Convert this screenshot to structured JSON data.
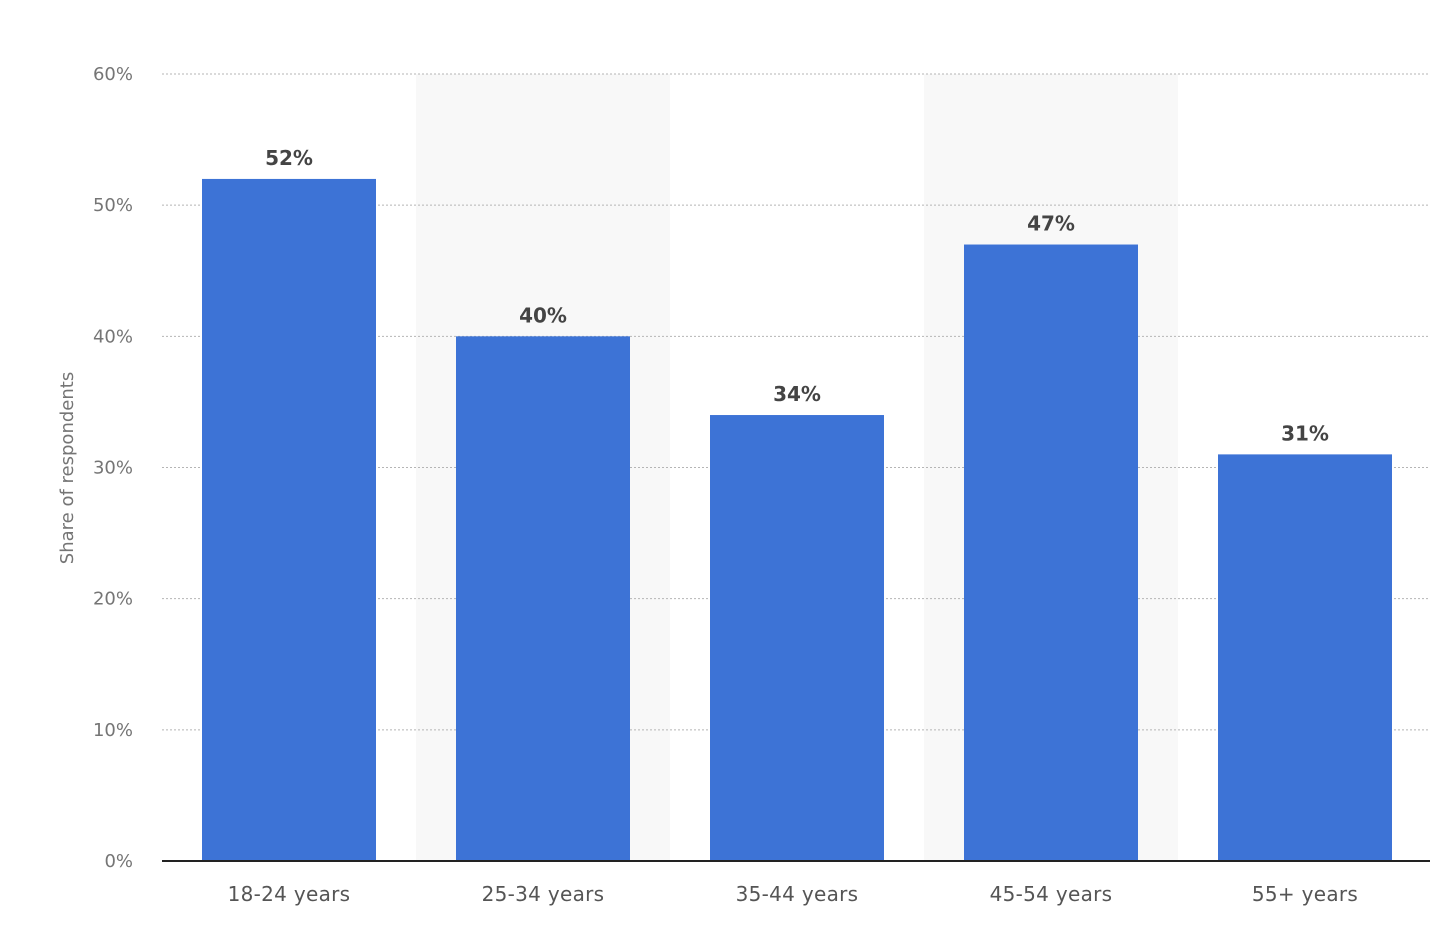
{
  "chart_data": {
    "type": "bar",
    "categories": [
      "18-24 years",
      "25-34 years",
      "35-44 years",
      "45-54 years",
      "55+ years"
    ],
    "values": [
      52,
      40,
      34,
      47,
      31
    ],
    "value_labels": [
      "52%",
      "40%",
      "34%",
      "47%",
      "31%"
    ],
    "title": "",
    "xlabel": "",
    "ylabel": "Share of respondents",
    "ylim": [
      0,
      60
    ],
    "yticks": [
      0,
      10,
      20,
      30,
      40,
      50,
      60
    ],
    "ytick_labels": [
      "0%",
      "10%",
      "20%",
      "30%",
      "40%",
      "50%",
      "60%"
    ],
    "grid": true,
    "legend": "none",
    "bar_color": "#3d73d6",
    "band_color": "#f8f8f8"
  }
}
